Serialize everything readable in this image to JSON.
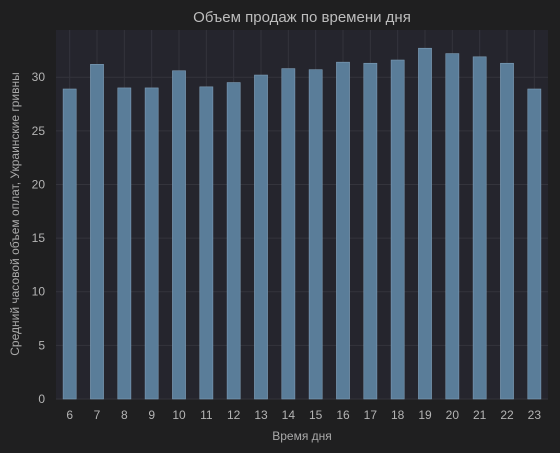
{
  "chart_data": {
    "type": "bar",
    "title": "Объем продаж по времени дня",
    "xlabel": "Время дня",
    "ylabel": "Средний часовой объем оплат, Украинские гривны",
    "categories": [
      "6",
      "7",
      "8",
      "9",
      "10",
      "11",
      "12",
      "13",
      "14",
      "15",
      "16",
      "17",
      "18",
      "19",
      "20",
      "21",
      "22",
      "23"
    ],
    "values": [
      28.9,
      31.2,
      29.0,
      29.0,
      30.6,
      29.1,
      29.5,
      30.2,
      30.8,
      30.7,
      31.4,
      31.3,
      31.6,
      32.7,
      32.2,
      31.9,
      31.3,
      28.9
    ],
    "ylim": [
      0,
      34.4
    ],
    "yticks": [
      0,
      5,
      10,
      15,
      20,
      25,
      30
    ],
    "grid": true,
    "colors": {
      "background": "#1f1f20",
      "plot_background": "#25252d",
      "bar": "#5a7d99"
    }
  }
}
